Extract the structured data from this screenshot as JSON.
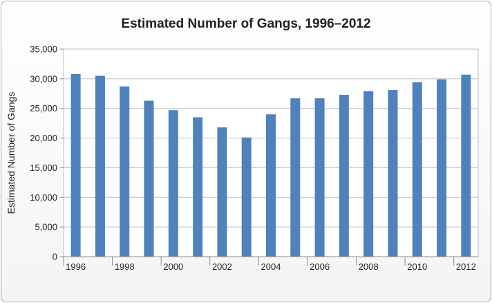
{
  "chart_data": {
    "type": "bar",
    "title": "Estimated Number of Gangs, 1996–2012",
    "xlabel": "",
    "ylabel": "Estimated Number of Gangs",
    "categories": [
      "1996",
      "1997",
      "1998",
      "1999",
      "2000",
      "2001",
      "2002",
      "2003",
      "2004",
      "2005",
      "2006",
      "2007",
      "2008",
      "2009",
      "2010",
      "2011",
      "2012"
    ],
    "x_tick_labels": [
      "1996",
      "",
      "1998",
      "",
      "2000",
      "",
      "2002",
      "",
      "2004",
      "",
      "2006",
      "",
      "2008",
      "",
      "2010",
      "",
      "2012"
    ],
    "series": [
      {
        "values": [
          30800,
          30500,
          28700,
          26300,
          24700,
          23500,
          21800,
          20100,
          24000,
          26700,
          26700,
          27300,
          27900,
          28100,
          29400,
          29900,
          30700
        ]
      }
    ],
    "ylim": [
      0,
      35000
    ],
    "y_ticks": [
      "0",
      "5,000",
      "10,000",
      "15,000",
      "20,000",
      "25,000",
      "30,000",
      "35,000"
    ],
    "y_tick_values": [
      0,
      5000,
      10000,
      15000,
      20000,
      25000,
      30000,
      35000
    ],
    "grid": true,
    "legend": "none",
    "bar_color": "#4f81bd"
  }
}
